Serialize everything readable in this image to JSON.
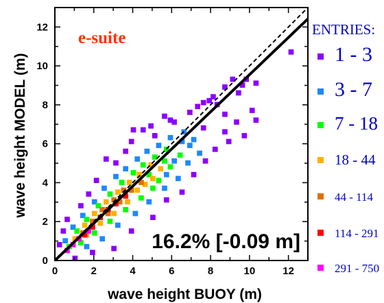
{
  "chart_data": {
    "type": "heatmap",
    "title": "",
    "xlabel": "wave height BUOY (m)",
    "ylabel": "wave height MODEL (m)",
    "xlim": [
      0,
      13
    ],
    "ylim": [
      0,
      13
    ],
    "xticks": [
      0,
      2,
      4,
      6,
      8,
      10,
      12
    ],
    "yticks": [
      0,
      2,
      4,
      6,
      8,
      10,
      12
    ],
    "grid": false,
    "inset_label": "e-suite",
    "inset_color": "#ff3300",
    "statistic": "16.2% [-0.09 m]",
    "reference_lines": [
      {
        "style": "dashed",
        "intercept": 0,
        "slope": 1
      },
      {
        "style": "solid",
        "intercept": 0,
        "slope": 0.955
      }
    ],
    "legend": {
      "title": "ENTRIES:",
      "title_color": "#0000cc",
      "placement": "right",
      "entries": [
        {
          "label": "1 - 3",
          "color": "#8b00ff"
        },
        {
          "label": "3 - 7",
          "color": "#1e88ff"
        },
        {
          "label": "7 - 18",
          "color": "#00ff00"
        },
        {
          "label": "18 - 44",
          "color": "#ffb000"
        },
        {
          "label": "44 - 114",
          "color": "#e07000"
        },
        {
          "label": "114 - 291",
          "color": "#ff0000"
        },
        {
          "label": "291 - 750",
          "color": "#ff00ff"
        }
      ]
    },
    "bin_size": 0.25,
    "bins": [
      {
        "x": 12.0,
        "y": 10.6,
        "c": 0
      },
      {
        "x": 10.2,
        "y": 9.0,
        "c": 0
      },
      {
        "x": 9.5,
        "y": 8.9,
        "c": 0
      },
      {
        "x": 9.7,
        "y": 9.2,
        "c": 0
      },
      {
        "x": 9.0,
        "y": 9.2,
        "c": 0
      },
      {
        "x": 9.3,
        "y": 8.5,
        "c": 0
      },
      {
        "x": 8.6,
        "y": 8.8,
        "c": 0
      },
      {
        "x": 10.0,
        "y": 7.6,
        "c": 0
      },
      {
        "x": 9.6,
        "y": 6.3,
        "c": 0
      },
      {
        "x": 10.2,
        "y": 7.1,
        "c": 0
      },
      {
        "x": 9.2,
        "y": 7.0,
        "c": 0
      },
      {
        "x": 8.8,
        "y": 6.0,
        "c": 0
      },
      {
        "x": 8.6,
        "y": 7.4,
        "c": 0
      },
      {
        "x": 8.2,
        "y": 7.9,
        "c": 0
      },
      {
        "x": 8.0,
        "y": 8.3,
        "c": 0
      },
      {
        "x": 7.8,
        "y": 8.1,
        "c": 0
      },
      {
        "x": 7.5,
        "y": 8.0,
        "c": 0
      },
      {
        "x": 7.2,
        "y": 7.8,
        "c": 0
      },
      {
        "x": 6.8,
        "y": 7.5,
        "c": 0
      },
      {
        "x": 5.8,
        "y": 7.1,
        "c": 0
      },
      {
        "x": 5.5,
        "y": 7.3,
        "c": 0
      },
      {
        "x": 4.4,
        "y": 6.6,
        "c": 0
      },
      {
        "x": 5.0,
        "y": 6.3,
        "c": 0
      },
      {
        "x": 3.5,
        "y": 5.5,
        "c": 0
      },
      {
        "x": 3.8,
        "y": 6.0,
        "c": 0
      },
      {
        "x": 3.0,
        "y": 4.9,
        "c": 0
      },
      {
        "x": 2.5,
        "y": 5.1,
        "c": 0
      },
      {
        "x": 2.0,
        "y": 4.0,
        "c": 0
      },
      {
        "x": 1.6,
        "y": 3.3,
        "c": 0
      },
      {
        "x": 1.2,
        "y": 2.7,
        "c": 0
      },
      {
        "x": 0.5,
        "y": 2.0,
        "c": 0
      },
      {
        "x": 0.3,
        "y": 1.4,
        "c": 0
      },
      {
        "x": 0.1,
        "y": 0.7,
        "c": 0
      },
      {
        "x": 0.9,
        "y": 0.0,
        "c": 0
      },
      {
        "x": 1.8,
        "y": 0.3,
        "c": 0
      },
      {
        "x": 2.9,
        "y": 0.5,
        "c": 0
      },
      {
        "x": 3.8,
        "y": 1.4,
        "c": 0
      },
      {
        "x": 4.9,
        "y": 2.1,
        "c": 0
      },
      {
        "x": 5.6,
        "y": 3.0,
        "c": 0
      },
      {
        "x": 6.4,
        "y": 3.4,
        "c": 0
      },
      {
        "x": 7.0,
        "y": 4.3,
        "c": 0
      },
      {
        "x": 7.6,
        "y": 5.0,
        "c": 0
      },
      {
        "x": 8.1,
        "y": 5.6,
        "c": 0
      },
      {
        "x": 8.6,
        "y": 6.5,
        "c": 0
      },
      {
        "x": 7.5,
        "y": 6.7,
        "c": 0
      },
      {
        "x": 4.8,
        "y": 6.8,
        "c": 0
      },
      {
        "x": 6.0,
        "y": 7.0,
        "c": 0
      },
      {
        "x": 3.9,
        "y": 6.6,
        "c": 0
      },
      {
        "x": 7.0,
        "y": 6.1,
        "c": 1
      },
      {
        "x": 7.3,
        "y": 5.4,
        "c": 1
      },
      {
        "x": 6.7,
        "y": 4.9,
        "c": 1
      },
      {
        "x": 6.5,
        "y": 6.5,
        "c": 1
      },
      {
        "x": 5.8,
        "y": 6.2,
        "c": 1
      },
      {
        "x": 5.2,
        "y": 5.8,
        "c": 1
      },
      {
        "x": 4.6,
        "y": 5.5,
        "c": 1
      },
      {
        "x": 4.1,
        "y": 5.1,
        "c": 1
      },
      {
        "x": 3.5,
        "y": 4.6,
        "c": 1
      },
      {
        "x": 3.0,
        "y": 4.2,
        "c": 1
      },
      {
        "x": 2.4,
        "y": 3.6,
        "c": 1
      },
      {
        "x": 1.9,
        "y": 2.9,
        "c": 1
      },
      {
        "x": 1.3,
        "y": 2.2,
        "c": 1
      },
      {
        "x": 0.8,
        "y": 1.6,
        "c": 1
      },
      {
        "x": 0.4,
        "y": 0.9,
        "c": 1
      },
      {
        "x": 1.5,
        "y": 0.6,
        "c": 1
      },
      {
        "x": 2.3,
        "y": 1.0,
        "c": 1
      },
      {
        "x": 3.1,
        "y": 1.7,
        "c": 1
      },
      {
        "x": 4.0,
        "y": 2.3,
        "c": 1
      },
      {
        "x": 4.7,
        "y": 2.9,
        "c": 1
      },
      {
        "x": 5.5,
        "y": 3.6,
        "c": 1
      },
      {
        "x": 6.2,
        "y": 4.1,
        "c": 1
      },
      {
        "x": 6.8,
        "y": 5.8,
        "c": 1
      },
      {
        "x": 6.0,
        "y": 5.0,
        "c": 1
      },
      {
        "x": 6.4,
        "y": 6.0,
        "c": 1
      },
      {
        "x": 5.6,
        "y": 4.3,
        "c": 1
      },
      {
        "x": 6.3,
        "y": 5.3,
        "c": 2
      },
      {
        "x": 5.8,
        "y": 4.7,
        "c": 2
      },
      {
        "x": 5.2,
        "y": 4.0,
        "c": 2
      },
      {
        "x": 5.6,
        "y": 5.6,
        "c": 2
      },
      {
        "x": 5.0,
        "y": 5.2,
        "c": 2
      },
      {
        "x": 4.4,
        "y": 4.8,
        "c": 2
      },
      {
        "x": 3.9,
        "y": 4.4,
        "c": 2
      },
      {
        "x": 3.3,
        "y": 3.9,
        "c": 2
      },
      {
        "x": 2.7,
        "y": 3.3,
        "c": 2
      },
      {
        "x": 2.1,
        "y": 2.7,
        "c": 2
      },
      {
        "x": 1.5,
        "y": 2.0,
        "c": 2
      },
      {
        "x": 1.0,
        "y": 1.4,
        "c": 2
      },
      {
        "x": 0.6,
        "y": 0.6,
        "c": 2
      },
      {
        "x": 1.2,
        "y": 0.8,
        "c": 2
      },
      {
        "x": 1.9,
        "y": 1.3,
        "c": 2
      },
      {
        "x": 2.7,
        "y": 1.9,
        "c": 2
      },
      {
        "x": 3.5,
        "y": 2.5,
        "c": 2
      },
      {
        "x": 4.3,
        "y": 3.1,
        "c": 2
      },
      {
        "x": 4.9,
        "y": 3.6,
        "c": 2
      },
      {
        "x": 5.5,
        "y": 5.0,
        "c": 2
      },
      {
        "x": 4.7,
        "y": 4.3,
        "c": 2
      },
      {
        "x": 5.3,
        "y": 4.6,
        "c": 3
      },
      {
        "x": 4.8,
        "y": 4.8,
        "c": 3
      },
      {
        "x": 4.2,
        "y": 4.3,
        "c": 3
      },
      {
        "x": 4.5,
        "y": 3.8,
        "c": 3
      },
      {
        "x": 3.7,
        "y": 3.9,
        "c": 3
      },
      {
        "x": 3.1,
        "y": 3.4,
        "c": 3
      },
      {
        "x": 2.5,
        "y": 2.9,
        "c": 3
      },
      {
        "x": 1.9,
        "y": 2.3,
        "c": 3
      },
      {
        "x": 1.4,
        "y": 1.7,
        "c": 3
      },
      {
        "x": 0.9,
        "y": 1.0,
        "c": 3
      },
      {
        "x": 1.5,
        "y": 1.2,
        "c": 3
      },
      {
        "x": 2.2,
        "y": 1.8,
        "c": 3
      },
      {
        "x": 2.9,
        "y": 2.3,
        "c": 3
      },
      {
        "x": 3.6,
        "y": 2.9,
        "c": 3
      },
      {
        "x": 4.1,
        "y": 3.5,
        "c": 3
      },
      {
        "x": 4.9,
        "y": 4.1,
        "c": 3
      },
      {
        "x": 4.3,
        "y": 3.9,
        "c": 4
      },
      {
        "x": 3.8,
        "y": 3.5,
        "c": 4
      },
      {
        "x": 3.4,
        "y": 3.5,
        "c": 4
      },
      {
        "x": 2.9,
        "y": 3.0,
        "c": 4
      },
      {
        "x": 2.3,
        "y": 2.5,
        "c": 4
      },
      {
        "x": 1.8,
        "y": 1.9,
        "c": 4
      },
      {
        "x": 1.3,
        "y": 1.3,
        "c": 4
      },
      {
        "x": 2.6,
        "y": 2.3,
        "c": 4
      },
      {
        "x": 3.2,
        "y": 2.9,
        "c": 4
      },
      {
        "x": 3.5,
        "y": 3.2,
        "c": 5
      },
      {
        "x": 3.0,
        "y": 2.8,
        "c": 5
      },
      {
        "x": 2.6,
        "y": 2.5,
        "c": 5
      },
      {
        "x": 2.2,
        "y": 2.1,
        "c": 5
      },
      {
        "x": 1.8,
        "y": 1.6,
        "c": 5
      },
      {
        "x": 1.4,
        "y": 1.2,
        "c": 5
      },
      {
        "x": 0.8,
        "y": 0.7,
        "c": 6
      },
      {
        "x": 1.1,
        "y": 1.0,
        "c": 6
      },
      {
        "x": 0.5,
        "y": 0.4,
        "c": 6
      },
      {
        "x": 1.6,
        "y": 1.4,
        "c": 6
      }
    ]
  }
}
